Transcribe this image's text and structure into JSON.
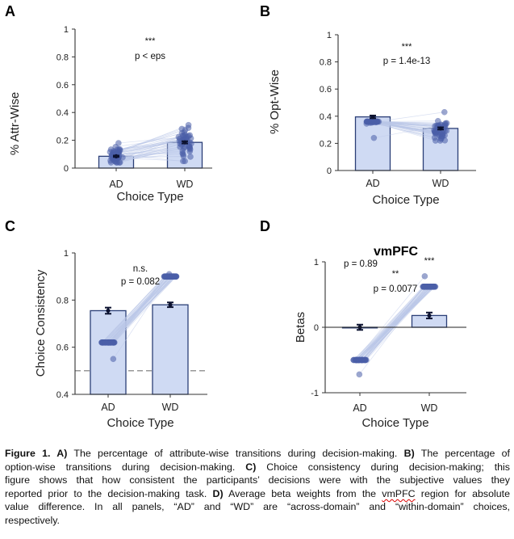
{
  "colors": {
    "bar_fill": "#cfdaf3",
    "bar_edge": "#2b3f77",
    "point": "#4a5fa8",
    "line": "#b9c6e8",
    "error": "#0c1230",
    "axis": "#333333",
    "dash": "#777777"
  },
  "chart_data": [
    {
      "panel": "A",
      "type": "bar",
      "xlabel": "Choice Type",
      "ylabel": "% Attr-Wise",
      "categories": [
        "AD",
        "WD"
      ],
      "values": [
        0.085,
        0.185
      ],
      "errors": [
        0.005,
        0.008
      ],
      "ylim": [
        0,
        1
      ],
      "yticks": [
        "0",
        "0.2",
        "0.4",
        "0.6",
        "0.8",
        "1"
      ],
      "annotations": [
        {
          "id": "stars",
          "text": "***"
        },
        {
          "id": "p",
          "text": "p < eps"
        }
      ],
      "points": [
        [
          0.04,
          0.18
        ],
        [
          0.05,
          0.31
        ],
        [
          0.08,
          0.18
        ]
      ]
    },
    {
      "panel": "B",
      "type": "bar",
      "xlabel": "Choice Type",
      "ylabel": "% Opt-Wise",
      "categories": [
        "AD",
        "WD"
      ],
      "values": [
        0.395,
        0.31
      ],
      "errors": [
        0.01,
        0.008
      ],
      "ylim": [
        0,
        1
      ],
      "yticks": [
        "0",
        "0.2",
        "0.4",
        "0.6",
        "0.8",
        "1"
      ],
      "annotations": [
        {
          "id": "stars",
          "text": "***"
        },
        {
          "id": "p",
          "text": "p = 1.4e-13"
        }
      ],
      "points": [
        [
          0.24,
          0.36
        ],
        [
          0.22,
          0.43
        ],
        [
          0.53,
          0.41
        ]
      ]
    },
    {
      "panel": "C",
      "type": "bar",
      "xlabel": "Choice Type",
      "ylabel": "Choice Consistency",
      "categories": [
        "AD",
        "WD"
      ],
      "values": [
        0.755,
        0.78
      ],
      "errors": [
        0.013,
        0.01
      ],
      "ylim": [
        0.4,
        1
      ],
      "yticks": [
        "0.4",
        "0.6",
        "0.8",
        "1"
      ],
      "reference_line": 0.5,
      "annotations": [
        {
          "id": "ns",
          "text": "n.s."
        },
        {
          "id": "p",
          "text": "p = 0.082"
        }
      ],
      "points": [
        [
          0.55,
          0.62
        ],
        [
          0.9,
          0.91
        ],
        [
          0.67,
          0.79
        ]
      ]
    },
    {
      "panel": "D",
      "type": "bar",
      "title": "vmPFC",
      "xlabel": "Choice Type",
      "ylabel": "Betas",
      "categories": [
        "AD",
        "WD"
      ],
      "values": [
        0.0,
        0.18
      ],
      "errors": [
        0.04,
        0.045
      ],
      "ylim": [
        -1,
        1
      ],
      "yticks": [
        "-1",
        "0",
        "1"
      ],
      "zero_line": true,
      "annotations": [
        {
          "id": "p_ad",
          "text": "p = 0.89"
        },
        {
          "id": "stars_wd",
          "text": "***"
        },
        {
          "id": "stars",
          "text": "**"
        },
        {
          "id": "p",
          "text": "p = 0.0077"
        }
      ],
      "points": [
        [
          -0.72,
          -0.5
        ],
        [
          0.62,
          0.78
        ],
        [
          0.0,
          0.18
        ]
      ]
    }
  ],
  "caption": {
    "lines": [
      [
        {
          "t": "Figure 1. A)",
          "b": true
        },
        {
          "t": " The percentage of attribute-wise transitions during decision-making. "
        },
        {
          "t": "B)",
          "b": true
        },
        {
          "t": " The percentage of"
        }
      ],
      [
        {
          "t": "option-wise transitions during decision-making. "
        },
        {
          "t": "C)",
          "b": true
        },
        {
          "t": " Choice consistency during decision-making; this"
        }
      ],
      [
        {
          "t": "figure shows that how consistent the participants’ decisions were with the subjective values they"
        }
      ],
      [
        {
          "t": "reported prior to the decision-making task. "
        },
        {
          "t": "D)",
          "b": true
        },
        {
          "t": " Average beta weights from the "
        },
        {
          "t": "vmPFC",
          "s": true
        },
        {
          "t": " region for absolute"
        }
      ],
      [
        {
          "t": "value difference. In all panels, “AD” and “WD” are “across-domain” and “within-domain” choices,"
        }
      ],
      [
        {
          "t": "respectively."
        }
      ]
    ]
  }
}
